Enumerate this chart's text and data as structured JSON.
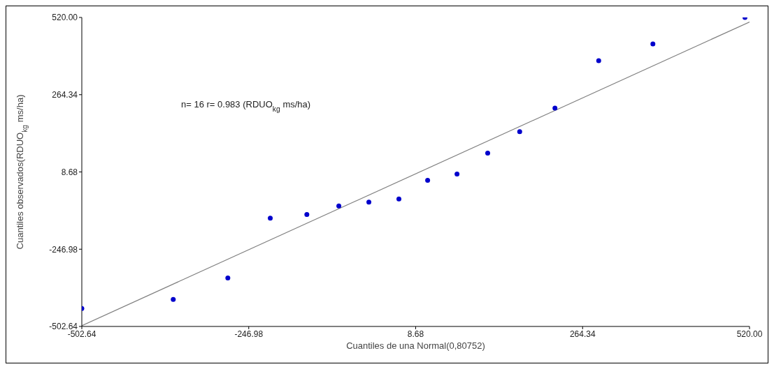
{
  "chart_data": {
    "type": "scatter",
    "xlabel": "Cuantiles de una Normal(0,80752)",
    "ylabel": "Cuantiles observados(RDUO$_{kg}$ ms/ha)",
    "annotations": [
      "n= 16 r= 0.983 (RDUO$_{kg}$ ms/ha)"
    ],
    "xlim": [
      -502.64,
      520
    ],
    "ylim": [
      -502.64,
      520
    ],
    "xticks": [
      -502.64,
      -246.98,
      8.68,
      264.34,
      {
        "value": 520,
        "label": "520.00"
      }
    ],
    "yticks": [
      -502.64,
      -246.98,
      8.68,
      264.34,
      {
        "value": 520,
        "label": "520.00"
      }
    ],
    "grid": false,
    "legend": false,
    "series": [
      {
        "marker": "circle",
        "color": "#0000cc",
        "x": [
          -502.64,
          -362.6,
          -279,
          -214,
          -158,
          -109,
          -63,
          -17,
          27,
          72,
          119,
          168,
          222,
          289,
          372,
          513
        ],
        "values": [
          -443,
          -413,
          -342,
          -144,
          -132,
          -104,
          -91,
          -81,
          -19,
          2,
          71,
          142,
          220,
          377,
          432,
          520
        ]
      },
      {
        "type": "line",
        "marker": "none",
        "color": "#808080",
        "x": [
          -502.64,
          520
        ],
        "values": [
          -500,
          505
        ]
      }
    ]
  }
}
